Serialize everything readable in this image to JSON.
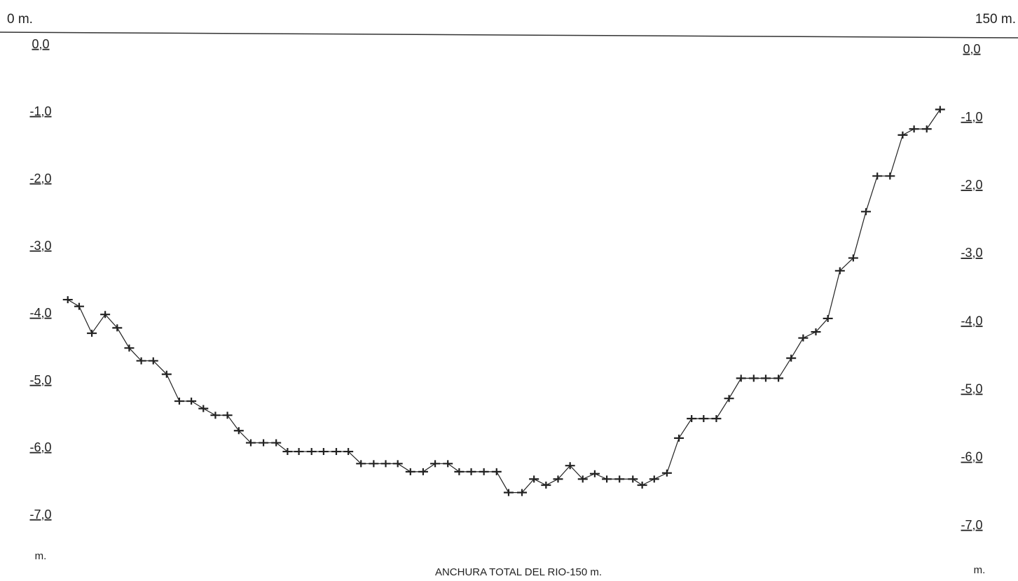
{
  "chart_data": {
    "type": "line",
    "x_label": "ANCHURA TOTAL DEL RIO-150 m.",
    "y_unit": "m.",
    "y2_unit": "m.",
    "xlim": [
      0,
      150
    ],
    "xticks": [
      {
        "value": 0,
        "label": "0 m."
      },
      {
        "value": 150,
        "label": "150 m."
      }
    ],
    "ylim": [
      -7,
      0
    ],
    "yticks": [
      {
        "value": 0,
        "label": "0,0"
      },
      {
        "value": -1,
        "label": "-1,0"
      },
      {
        "value": -2,
        "label": "-2,0"
      },
      {
        "value": -3,
        "label": "-3,0"
      },
      {
        "value": -4,
        "label": "-4,0"
      },
      {
        "value": -5,
        "label": "-5,0"
      },
      {
        "value": -6,
        "label": "-6,0"
      },
      {
        "value": -7,
        "label": "-7,0"
      }
    ],
    "y2lim": [
      -7,
      0
    ],
    "y2ticks": [
      {
        "value": 0,
        "label": "0,0"
      },
      {
        "value": -1,
        "label": "-1,0"
      },
      {
        "value": -2,
        "label": "-2,0"
      },
      {
        "value": -3,
        "label": "-3,0"
      },
      {
        "value": -4,
        "label": "-4,0"
      },
      {
        "value": -5,
        "label": "-5,0"
      },
      {
        "value": -6,
        "label": "-6,0"
      },
      {
        "value": -7,
        "label": "-7,0"
      }
    ],
    "color": "#222222",
    "x": [
      9.1,
      10.8,
      12.7,
      14.7,
      16.5,
      18.3,
      20.1,
      21.9,
      23.9,
      25.8,
      27.6,
      29.4,
      31.2,
      33.0,
      34.7,
      36.5,
      38.4,
      40.3,
      42.0,
      43.7,
      45.6,
      47.4,
      49.3,
      51.1,
      53.0,
      54.9,
      56.7,
      58.5,
      60.4,
      62.3,
      64.1,
      66.0,
      67.7,
      69.5,
      71.4,
      73.3,
      75.1,
      77.1,
      78.9,
      80.7,
      82.5,
      84.3,
      86.2,
      88.0,
      89.8,
      91.7,
      93.7,
      95.1,
      96.9,
      98.8,
      100.6,
      102.5,
      104.3,
      106.2,
      108.1,
      109.9,
      111.8,
      113.6,
      115.5,
      117.4,
      119.2,
      121.1,
      122.9,
      124.7,
      126.7,
      128.6,
      130.3,
      132.2,
      134.1,
      135.8,
      137.7,
      139.7
    ],
    "values": [
      -3.73,
      -3.83,
      -4.23,
      -3.95,
      -4.15,
      -4.45,
      -4.64,
      -4.64,
      -4.84,
      -5.24,
      -5.24,
      -5.35,
      -5.45,
      -5.45,
      -5.68,
      -5.86,
      -5.86,
      -5.86,
      -5.99,
      -5.99,
      -5.99,
      -5.99,
      -5.99,
      -5.99,
      -6.17,
      -6.17,
      -6.17,
      -6.17,
      -6.29,
      -6.29,
      -6.17,
      -6.17,
      -6.29,
      -6.29,
      -6.29,
      -6.29,
      -6.6,
      -6.6,
      -6.4,
      -6.49,
      -6.4,
      -6.2,
      -6.4,
      -6.32,
      -6.4,
      -6.4,
      -6.4,
      -6.49,
      -6.4,
      -6.31,
      -5.79,
      -5.5,
      -5.5,
      -5.5,
      -5.2,
      -4.9,
      -4.9,
      -4.9,
      -4.9,
      -4.6,
      -4.3,
      -4.21,
      -4.01,
      -3.3,
      -3.11,
      -2.42,
      -1.89,
      -1.89,
      -1.28,
      -1.19,
      -1.19,
      -0.9
    ]
  }
}
